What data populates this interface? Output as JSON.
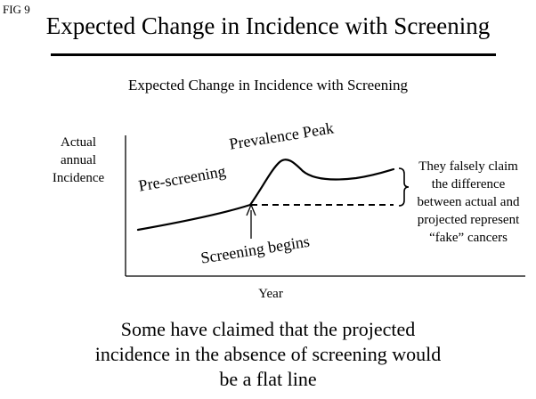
{
  "fig_label": "FIG 9",
  "main_title": "Expected Change in Incidence with Screening",
  "diagram": {
    "title": "Expected Change in Incidence with Screening",
    "y_axis_label": [
      "Actual",
      "annual",
      "Incidence"
    ],
    "x_axis_label": "Year",
    "labels": {
      "prescreening": "Pre-screening",
      "prevalence_peak": "Prevalence Peak",
      "screening_begins": "Screening begins"
    },
    "claim_lines": [
      "They falsely claim",
      "the difference",
      "between actual and",
      "projected represent",
      "“fake” cancers"
    ]
  },
  "bottom_note": [
    "Some have claimed that the projected",
    "incidence in the absence of screening would",
    "be a flat line"
  ]
}
